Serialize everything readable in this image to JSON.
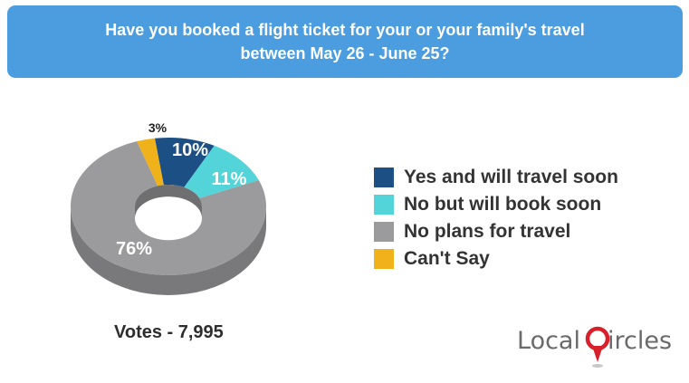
{
  "colors": {
    "header_bg": "#4b9de0",
    "yes_travel": "#1c4f83",
    "no_book": "#53d4d8",
    "no_plans": "#9b9b9e",
    "cant_say": "#f0b21a",
    "brand_red": "#d8202b"
  },
  "header": {
    "title": "Have you booked a flight ticket for your or your family's travel between May 26 - June 25?"
  },
  "chart_data": {
    "type": "pie",
    "variant": "donut-3d",
    "title": "Have you booked a flight ticket for your or your family's travel between May 26 - June 25?",
    "slices": [
      {
        "label": "Yes and will travel soon",
        "value": 10,
        "display": "10%",
        "color": "#1c4f83"
      },
      {
        "label": "No but will book soon",
        "value": 11,
        "display": "11%",
        "color": "#53d4d8"
      },
      {
        "label": "No plans for travel",
        "value": 76,
        "display": "76%",
        "color": "#9b9b9e"
      },
      {
        "label": "Can't Say",
        "value": 3,
        "display": "3%",
        "color": "#f0b21a"
      }
    ],
    "legend_position": "right",
    "total_votes_text": "Votes - 7,995"
  },
  "legend": {
    "items": [
      {
        "label": "Yes and will travel soon",
        "color": "#1c4f83"
      },
      {
        "label": "No but will book soon",
        "color": "#53d4d8"
      },
      {
        "label": "No plans for travel",
        "color": "#9b9b9e"
      },
      {
        "label": "Can't Say",
        "color": "#f0b21a"
      }
    ]
  },
  "footer": {
    "votes": "Votes - 7,995",
    "brand_left": "Local",
    "brand_right": "ircles"
  },
  "icons": {
    "brand_pin": "map-pin-icon"
  }
}
